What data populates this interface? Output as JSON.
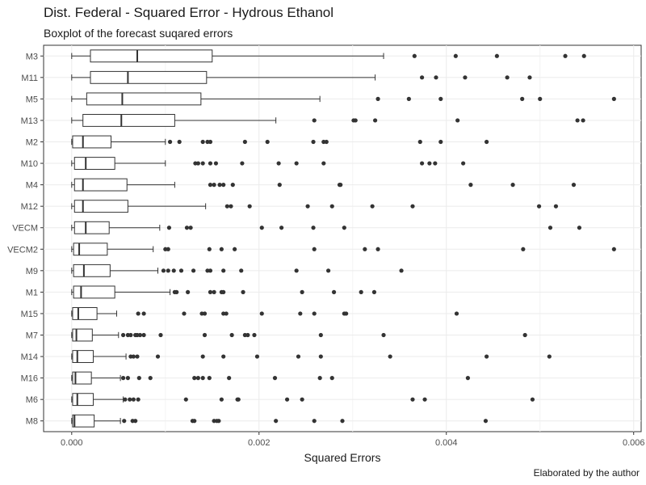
{
  "title": "Dist. Federal - Squared Error - Hydrous Ethanol",
  "subtitle": "Boxplot of the forecast suqared errors",
  "caption": "Elaborated by the author",
  "chart_data": {
    "type": "boxplot",
    "orientation": "horizontal",
    "xlabel": "Squared Errors",
    "ylabel": "",
    "xlim": [
      -0.0003,
      0.00608
    ],
    "xticks": [
      0,
      0.002,
      0.004,
      0.006
    ],
    "xtick_labels": [
      "0.000",
      "0.002",
      "0.004",
      "0.006"
    ],
    "grid": true,
    "categories": [
      "M3",
      "M11",
      "M5",
      "M13",
      "M2",
      "M10",
      "M4",
      "M12",
      "VECM",
      "VECM2",
      "M9",
      "M1",
      "M15",
      "M7",
      "M14",
      "M16",
      "M6",
      "M8"
    ],
    "boxes": [
      {
        "name": "M3",
        "min": 0.0,
        "q1": 0.0002,
        "median": 0.0007,
        "q3": 0.0015,
        "max": 0.00333,
        "outliers": [
          0.00366,
          0.0041,
          0.00454,
          0.00527,
          0.00547
        ]
      },
      {
        "name": "M11",
        "min": 0.0,
        "q1": 0.0002,
        "median": 0.0006,
        "q3": 0.00144,
        "max": 0.00324,
        "outliers": [
          0.00374,
          0.00389,
          0.0042,
          0.00465,
          0.00489
        ]
      },
      {
        "name": "M5",
        "min": 0.0,
        "q1": 0.00016,
        "median": 0.00054,
        "q3": 0.00138,
        "max": 0.00265,
        "outliers": [
          0.00327,
          0.0036,
          0.00394,
          0.00481,
          0.005,
          0.00579
        ]
      },
      {
        "name": "M13",
        "min": 0.0,
        "q1": 0.00012,
        "median": 0.00053,
        "q3": 0.0011,
        "max": 0.00218,
        "outliers": [
          0.00259,
          0.00301,
          0.00303,
          0.00324,
          0.00412,
          0.0054,
          0.00546
        ]
      },
      {
        "name": "M2",
        "min": 0.0,
        "q1": 1e-05,
        "median": 0.00012,
        "q3": 0.00042,
        "max": 0.001,
        "outliers": [
          0.00105,
          0.00115,
          0.0014,
          0.00145,
          0.00148,
          0.00185,
          0.00209,
          0.00258,
          0.00269,
          0.00272,
          0.00372,
          0.00394,
          0.00443
        ]
      },
      {
        "name": "M10",
        "min": 0.0,
        "q1": 3e-05,
        "median": 0.00015,
        "q3": 0.00046,
        "max": 0.001,
        "outliers": [
          0.00132,
          0.00135,
          0.0014,
          0.00148,
          0.00154,
          0.00182,
          0.00221,
          0.0024,
          0.00269,
          0.00374,
          0.00382,
          0.00388,
          0.00418
        ]
      },
      {
        "name": "M4",
        "min": 0.0,
        "q1": 3e-05,
        "median": 0.00012,
        "q3": 0.00059,
        "max": 0.0011,
        "outliers": [
          0.00148,
          0.00152,
          0.00158,
          0.00162,
          0.00172,
          0.00222,
          0.00286,
          0.00287,
          0.00426,
          0.00471,
          0.00536
        ]
      },
      {
        "name": "M12",
        "min": 0.0,
        "q1": 3e-05,
        "median": 0.00012,
        "q3": 0.0006,
        "max": 0.00143,
        "outliers": [
          0.00166,
          0.0017,
          0.0019,
          0.00252,
          0.00278,
          0.00321,
          0.00364,
          0.00499,
          0.00517
        ]
      },
      {
        "name": "VECM",
        "min": 0.0,
        "q1": 3e-05,
        "median": 0.00015,
        "q3": 0.0004,
        "max": 0.00094,
        "outliers": [
          0.00104,
          0.00123,
          0.00127,
          0.00203,
          0.00224,
          0.00258,
          0.00291,
          0.00511,
          0.00542
        ]
      },
      {
        "name": "VECM2",
        "min": 0.0,
        "q1": 2e-05,
        "median": 8e-05,
        "q3": 0.00038,
        "max": 0.00087,
        "outliers": [
          0.001,
          0.00103,
          0.00147,
          0.0016,
          0.00174,
          0.00259,
          0.00313,
          0.00327,
          0.00482,
          0.00579
        ]
      },
      {
        "name": "M9",
        "min": 0.0,
        "q1": 2e-05,
        "median": 0.00013,
        "q3": 0.00041,
        "max": 0.00092,
        "outliers": [
          0.00098,
          0.00103,
          0.00109,
          0.00117,
          0.0013,
          0.00145,
          0.00148,
          0.00162,
          0.00181,
          0.0024,
          0.00274,
          0.00352
        ]
      },
      {
        "name": "M1",
        "min": 0.0,
        "q1": 2e-05,
        "median": 0.0001,
        "q3": 0.00046,
        "max": 0.00105,
        "outliers": [
          0.0011,
          0.00112,
          0.00124,
          0.00148,
          0.00152,
          0.0016,
          0.00162,
          0.00183,
          0.00246,
          0.0028,
          0.00309,
          0.00323
        ]
      },
      {
        "name": "M15",
        "min": 0.0,
        "q1": 1e-05,
        "median": 7e-05,
        "q3": 0.00027,
        "max": 0.00048,
        "outliers": [
          0.00071,
          0.00077,
          0.0012,
          0.00139,
          0.00142,
          0.00162,
          0.00165,
          0.00203,
          0.00244,
          0.00259,
          0.00291,
          0.00293,
          0.00411
        ]
      },
      {
        "name": "M7",
        "min": 0.0,
        "q1": 1e-05,
        "median": 5e-05,
        "q3": 0.00022,
        "max": 0.0005,
        "outliers": [
          0.00055,
          0.0006,
          0.00063,
          0.00068,
          0.0007,
          0.00073,
          0.00077,
          0.00095,
          0.00142,
          0.00171,
          0.00185,
          0.00188,
          0.00195,
          0.00266,
          0.00333,
          0.00484
        ]
      },
      {
        "name": "M14",
        "min": 0.0,
        "q1": 1e-05,
        "median": 6e-05,
        "q3": 0.00023,
        "max": 0.00058,
        "outliers": [
          0.00063,
          0.00066,
          0.0007,
          0.00092,
          0.0014,
          0.00162,
          0.00198,
          0.00242,
          0.00266,
          0.0034,
          0.00443,
          0.0051
        ]
      },
      {
        "name": "M16",
        "min": 0.0,
        "q1": 1e-05,
        "median": 4e-05,
        "q3": 0.00021,
        "max": 0.00052,
        "outliers": [
          0.00055,
          0.0006,
          0.00072,
          0.00084,
          0.00131,
          0.00135,
          0.0014,
          0.00147,
          0.00168,
          0.00217,
          0.00265,
          0.00278,
          0.00423
        ]
      },
      {
        "name": "M6",
        "min": 0.0,
        "q1": 1e-05,
        "median": 6e-05,
        "q3": 0.00023,
        "max": 0.00055,
        "outliers": [
          0.00057,
          0.00062,
          0.00066,
          0.00071,
          0.00122,
          0.0016,
          0.00177,
          0.00178,
          0.0023,
          0.00246,
          0.00364,
          0.00377,
          0.00492
        ]
      },
      {
        "name": "M8",
        "min": 0.0,
        "q1": 1e-05,
        "median": 3e-05,
        "q3": 0.00024,
        "max": 0.00052,
        "outliers": [
          0.00056,
          0.00065,
          0.00068,
          0.00129,
          0.00131,
          0.00152,
          0.00155,
          0.00157,
          0.00218,
          0.00259,
          0.00289,
          0.00442
        ]
      }
    ]
  }
}
